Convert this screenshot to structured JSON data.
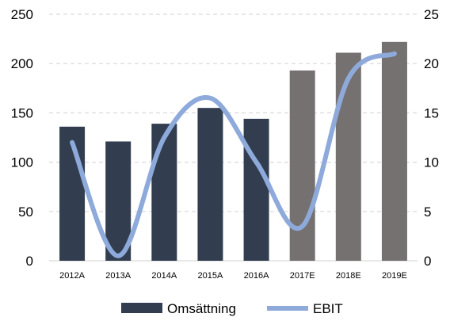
{
  "chart_data": {
    "type": "bar",
    "categories": [
      "2012A",
      "2013A",
      "2014A",
      "2015A",
      "2016A",
      "2017E",
      "2018E",
      "2019E"
    ],
    "series": [
      {
        "name": "Omsättning",
        "type": "bar",
        "axis": "left",
        "values": [
          136,
          121,
          139,
          155,
          144,
          193,
          211,
          222
        ],
        "colors": [
          "#323e4f",
          "#323e4f",
          "#323e4f",
          "#323e4f",
          "#323e4f",
          "#767171",
          "#767171",
          "#767171"
        ]
      },
      {
        "name": "EBIT",
        "type": "line",
        "smooth": true,
        "axis": "right",
        "values": [
          12.0,
          0.5,
          12.5,
          16.5,
          10.0,
          3.5,
          18.5,
          21.0
        ],
        "color": "#8eaadb"
      }
    ],
    "ylim": [
      0,
      250
    ],
    "yticks": [
      "0",
      "50",
      "100",
      "150",
      "200",
      "250"
    ],
    "y2lim": [
      0,
      25
    ],
    "y2ticks": [
      "0",
      "5",
      "10",
      "15",
      "20",
      "25"
    ],
    "grid": "horizontal dashed",
    "legend": "bottom"
  }
}
